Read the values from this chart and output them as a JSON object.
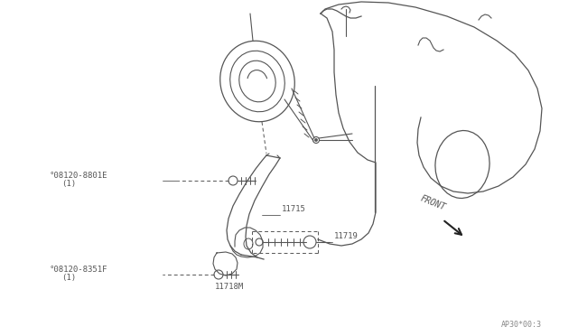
{
  "background_color": "#ffffff",
  "line_color": "#555555",
  "diagram_code": "AP30*00:3",
  "labels": {
    "part_11715": "11715",
    "part_11718M": "11718M",
    "part_11719": "11719",
    "bolt_A": "°08120-8801E",
    "bolt_A_qty": "(1)",
    "bolt_B": "°08120-8351F",
    "bolt_B_qty": "(1)",
    "front": "FRONT"
  },
  "font_size_label": 6.5,
  "font_size_code": 6,
  "font_size_front": 7
}
